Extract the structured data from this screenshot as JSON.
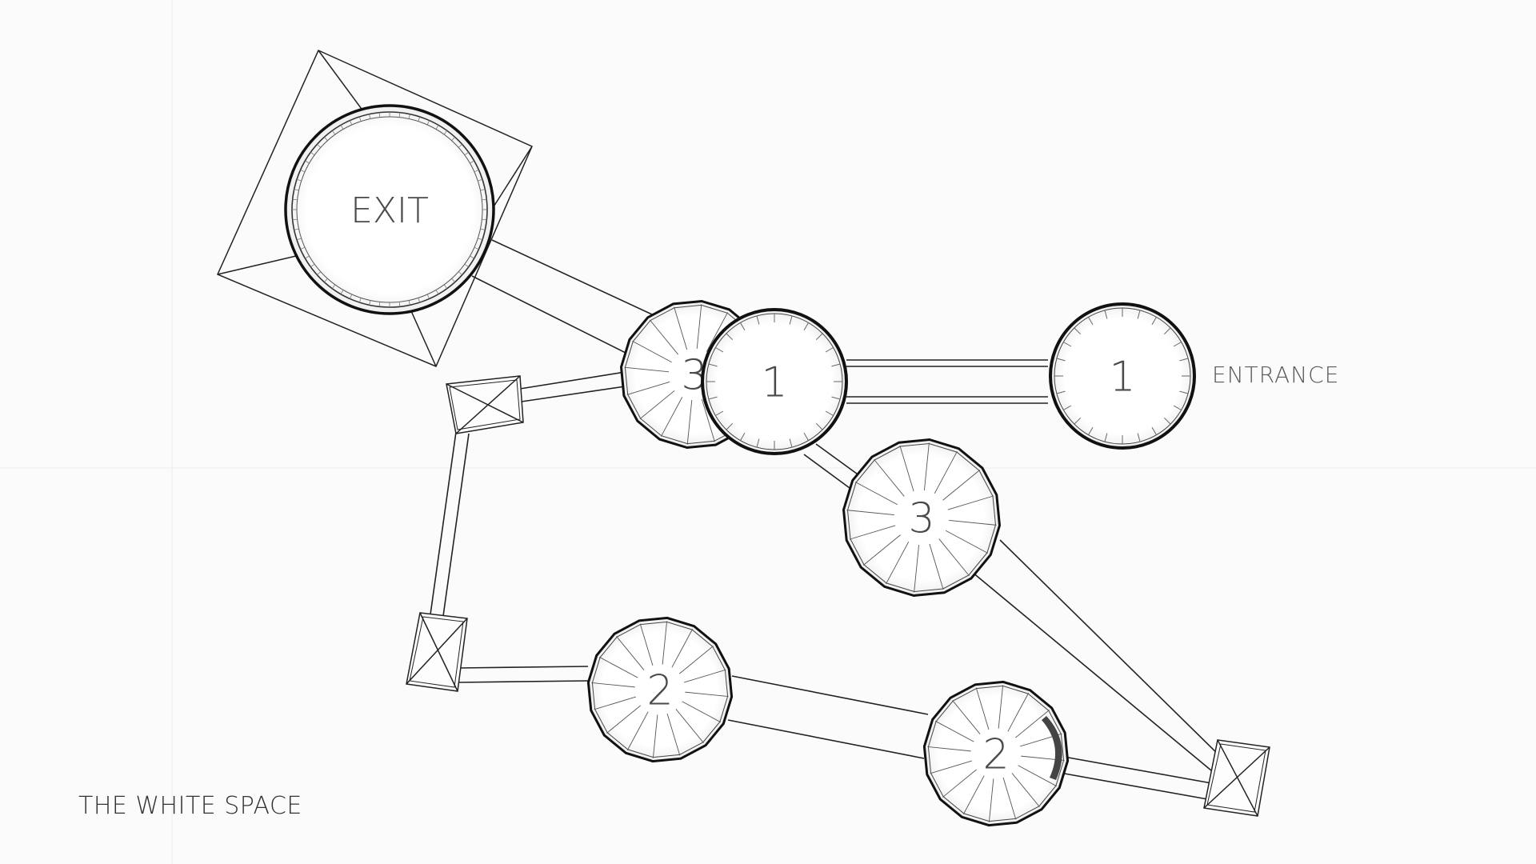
{
  "diagram": {
    "title": "THE WHITE SPACE",
    "entrance_label": "ENTRANCE",
    "rooms": [
      {
        "id": "exit",
        "label": "EXIT"
      },
      {
        "id": "room-3-upper",
        "label": "3"
      },
      {
        "id": "room-1-center",
        "label": "1"
      },
      {
        "id": "room-1-right",
        "label": "1"
      },
      {
        "id": "room-3-lower",
        "label": "3"
      },
      {
        "id": "room-2-left",
        "label": "2"
      },
      {
        "id": "room-2-right",
        "label": "2"
      }
    ]
  },
  "colors": {
    "background": "#fbfbfb",
    "line": "#1a1a1a",
    "text": "#4a4a4a"
  }
}
